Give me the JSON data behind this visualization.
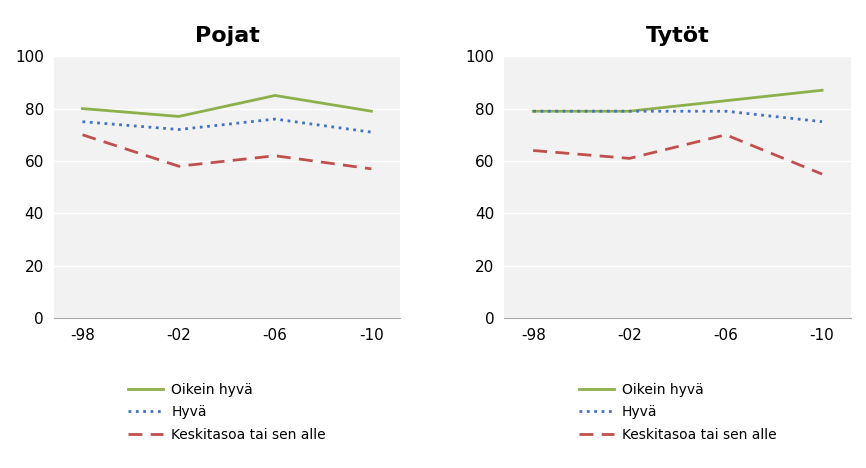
{
  "x_labels": [
    "-98",
    "-02",
    "-06",
    "-10"
  ],
  "x_values": [
    0,
    1,
    2,
    3
  ],
  "pojat": {
    "title": "Pojat",
    "oikein_hyva": [
      80,
      77,
      85,
      79
    ],
    "hyva": [
      75,
      72,
      76,
      71
    ],
    "keski": [
      70,
      58,
      62,
      57
    ]
  },
  "tytot": {
    "title": "Tytöt",
    "oikein_hyva": [
      79,
      79,
      83,
      87
    ],
    "hyva": [
      79,
      79,
      79,
      75
    ],
    "keski": [
      64,
      61,
      70,
      55
    ]
  },
  "color_green": "#8DB04B",
  "color_blue": "#4472C4",
  "color_red": "#C0504D",
  "legend_labels": [
    "Oikein hyvä",
    "Hyvä",
    "Keskitasoa tai sen alle"
  ],
  "ylim": [
    0,
    100
  ],
  "yticks": [
    0,
    20,
    40,
    60,
    80,
    100
  ],
  "background_color": "#FFFFFF",
  "plot_bg_color": "#F2F2F2"
}
